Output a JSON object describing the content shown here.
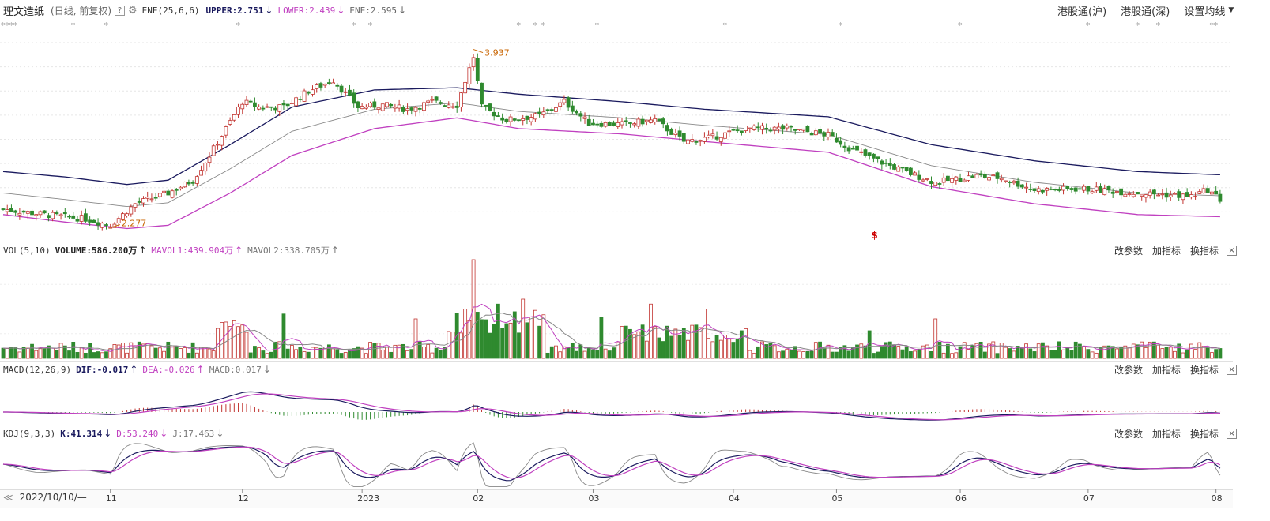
{
  "header": {
    "stock_name": "理文造纸",
    "period": "(日线, 前复权)",
    "help": "?",
    "indicator": "ENE(25,6,6)",
    "upper": "UPPER:2.751",
    "lower": "LOWER:2.439",
    "ene": "ENE:2.595",
    "hk_sh": "港股通(沪)",
    "hk_sz": "港股通(深)",
    "ma_settings": "设置均线"
  },
  "vol_header": {
    "indicator": "VOL(5,10)",
    "volume": "VOLUME:586.200万",
    "mavol1": "MAVOL1:439.904万",
    "mavol2": "MAVOL2:338.705万"
  },
  "macd_header": {
    "indicator": "MACD(12,26,9)",
    "dif": "DIF:-0.017",
    "dea": "DEA:-0.026",
    "macd": "MACD:0.017"
  },
  "kdj_header": {
    "indicator": "KDJ(9,3,3)",
    "k": "K:41.314",
    "d": "D:53.240",
    "j": "J:17.463"
  },
  "panel_buttons": {
    "change": "改参数",
    "add": "加指标",
    "swap": "换指标",
    "close": "×"
  },
  "annotations": {
    "high": "3.937",
    "low": "2.277",
    "marker": "$"
  },
  "footer": {
    "nav": "≪",
    "start_date": "2022/10/10/—"
  },
  "chart_data": {
    "type": "candlestick",
    "title": "理文造纸",
    "x_ticks": [
      "11",
      "12",
      "2023",
      "02",
      "03",
      "04",
      "05",
      "06",
      "07",
      "08"
    ],
    "price_range": [
      2.2,
      4.0
    ],
    "high_label": 3.937,
    "low_label": 2.277,
    "colors": {
      "up": "#c23531",
      "down": "#2f8a2f",
      "upper": "#1a1a5e",
      "lower": "#c040c0",
      "ene": "#888888",
      "mavol1": "#c040c0",
      "mavol2": "#888888"
    },
    "price_anchors": [
      [
        0,
        2.45
      ],
      [
        10,
        2.4
      ],
      [
        20,
        2.36
      ],
      [
        26,
        2.3
      ],
      [
        32,
        2.5
      ],
      [
        40,
        2.6
      ],
      [
        46,
        2.72
      ],
      [
        50,
        2.95
      ],
      [
        54,
        3.2
      ],
      [
        58,
        3.45
      ],
      [
        62,
        3.4
      ],
      [
        68,
        3.4
      ],
      [
        74,
        3.55
      ],
      [
        80,
        3.65
      ],
      [
        86,
        3.4
      ],
      [
        92,
        3.42
      ],
      [
        98,
        3.38
      ],
      [
        104,
        3.45
      ],
      [
        110,
        3.42
      ],
      [
        114,
        3.87
      ],
      [
        116,
        3.4
      ],
      [
        122,
        3.28
      ],
      [
        130,
        3.32
      ],
      [
        136,
        3.45
      ],
      [
        142,
        3.25
      ],
      [
        150,
        3.24
      ],
      [
        158,
        3.28
      ],
      [
        165,
        3.08
      ],
      [
        172,
        3.12
      ],
      [
        180,
        3.2
      ],
      [
        190,
        3.2
      ],
      [
        200,
        3.14
      ],
      [
        206,
        3.0
      ],
      [
        212,
        2.9
      ],
      [
        220,
        2.78
      ],
      [
        226,
        2.7
      ],
      [
        236,
        2.76
      ],
      [
        242,
        2.74
      ],
      [
        250,
        2.63
      ],
      [
        262,
        2.64
      ],
      [
        275,
        2.6
      ],
      [
        288,
        2.57
      ],
      [
        292,
        2.63
      ],
      [
        295,
        2.54
      ]
    ],
    "upper_anchors": [
      [
        0,
        2.8
      ],
      [
        15,
        2.75
      ],
      [
        30,
        2.68
      ],
      [
        40,
        2.72
      ],
      [
        55,
        3.05
      ],
      [
        70,
        3.4
      ],
      [
        90,
        3.56
      ],
      [
        110,
        3.58
      ],
      [
        125,
        3.52
      ],
      [
        150,
        3.45
      ],
      [
        170,
        3.38
      ],
      [
        200,
        3.31
      ],
      [
        225,
        3.05
      ],
      [
        250,
        2.9
      ],
      [
        275,
        2.8
      ],
      [
        295,
        2.77
      ]
    ],
    "lower_anchors": [
      [
        0,
        2.4
      ],
      [
        15,
        2.33
      ],
      [
        30,
        2.27
      ],
      [
        40,
        2.3
      ],
      [
        55,
        2.6
      ],
      [
        70,
        2.95
      ],
      [
        90,
        3.2
      ],
      [
        110,
        3.3
      ],
      [
        125,
        3.2
      ],
      [
        150,
        3.15
      ],
      [
        170,
        3.08
      ],
      [
        200,
        2.98
      ],
      [
        225,
        2.66
      ],
      [
        250,
        2.5
      ],
      [
        275,
        2.4
      ],
      [
        295,
        2.38
      ]
    ],
    "vol_spikes": [
      [
        114,
        1.0
      ],
      [
        126,
        0.6
      ],
      [
        120,
        0.55
      ],
      [
        112,
        0.5
      ],
      [
        157,
        0.55
      ],
      [
        170,
        0.5
      ],
      [
        226,
        0.4
      ],
      [
        68,
        0.45
      ],
      [
        100,
        0.4
      ],
      [
        145,
        0.42
      ],
      [
        210,
        0.28
      ],
      [
        180,
        0.3
      ]
    ],
    "volume_last": 586.2,
    "mavol1_last": 439.904,
    "mavol2_last": 338.705,
    "macd_dif_last": -0.017,
    "macd_dea_last": -0.026,
    "macd_hist_last": 0.017,
    "kdj_last": {
      "k": 41.314,
      "d": 53.24,
      "j": 17.463
    }
  }
}
